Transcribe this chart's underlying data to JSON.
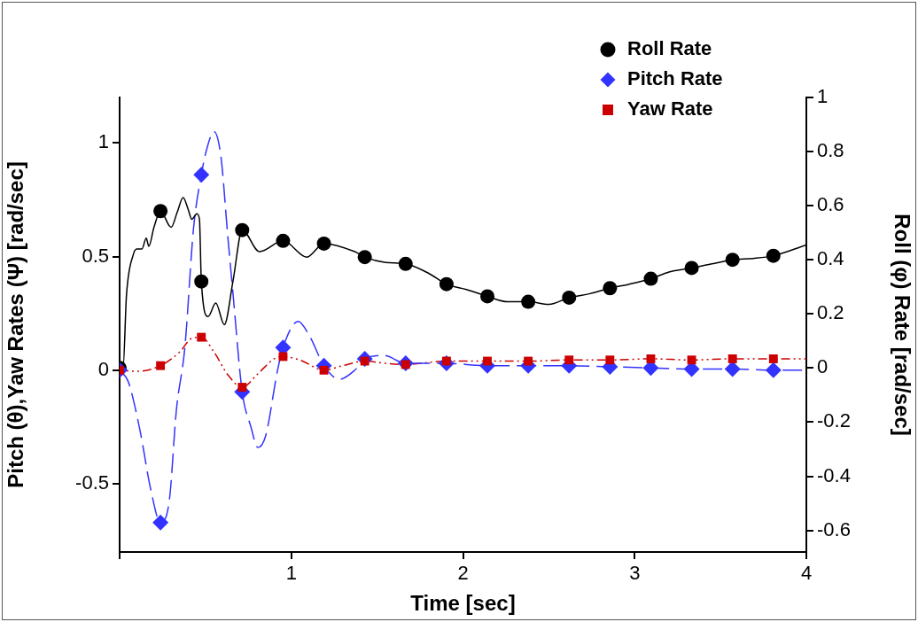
{
  "chart_data": {
    "type": "line",
    "xlabel": "Time [sec]",
    "ylabel": "Pitch (θ),Yaw Rates (Ψ) [rad/sec]",
    "y2label": "Roll (φ) Rate [rad/sec]",
    "xlim": [
      0,
      4
    ],
    "xticks": [
      {
        "value": 0,
        "label": null
      },
      1,
      2,
      3,
      4
    ],
    "ylim": [
      -0.8,
      1.2
    ],
    "yticks": [
      -0.5,
      0,
      0.5,
      1
    ],
    "y2lim": [
      -0.68,
      1
    ],
    "y2ticks": [
      -0.6,
      -0.4,
      -0.2,
      0,
      0.2,
      0.4,
      0.6,
      0.8,
      1
    ],
    "legend": "top right",
    "grid": false,
    "series": [
      {
        "name": "Roll Rate",
        "type": "scatter",
        "axis": "y2",
        "color": "#000000",
        "marker": "circle",
        "x": [
          0,
          0.238,
          0.476,
          0.714,
          0.952,
          1.19,
          1.428,
          1.666,
          1.904,
          2.142,
          2.38,
          2.618,
          2.856,
          3.094,
          3.332,
          3.57,
          3.808
        ],
        "values": [
          0,
          0.58,
          0.32,
          0.51,
          0.47,
          0.46,
          0.41,
          0.385,
          0.31,
          0.265,
          0.245,
          0.26,
          0.295,
          0.33,
          0.37,
          0.4,
          0.415
        ]
      },
      {
        "name": "Pitch Rate",
        "type": "scatter",
        "axis": "y",
        "color": "#3333ff",
        "marker": "diamond",
        "x": [
          0,
          0.238,
          0.476,
          0.714,
          0.952,
          1.19,
          1.428,
          1.666,
          1.904,
          2.142,
          2.38,
          2.618,
          2.856,
          3.094,
          3.332,
          3.57,
          3.808
        ],
        "values": [
          0,
          -0.67,
          0.86,
          -0.095,
          0.1,
          0.02,
          0.05,
          0.03,
          0.03,
          0.02,
          0.02,
          0.02,
          0.015,
          0.01,
          0.005,
          0.005,
          0
        ]
      },
      {
        "name": "Yaw Rate",
        "type": "scatter",
        "axis": "y",
        "color": "#cc0000",
        "marker": "square",
        "x": [
          0,
          0.238,
          0.476,
          0.714,
          0.952,
          1.19,
          1.428,
          1.666,
          1.904,
          2.142,
          2.38,
          2.618,
          2.856,
          3.094,
          3.332,
          3.57,
          3.808
        ],
        "values": [
          0,
          0.02,
          0.145,
          -0.075,
          0.06,
          0,
          0.04,
          0.025,
          0.04,
          0.04,
          0.04,
          0.045,
          0.045,
          0.05,
          0.045,
          0.05,
          0.05
        ]
      },
      {
        "type": "line",
        "axis": "y2",
        "color": "#000000",
        "marker": "none",
        "line_style": "solid",
        "x": [
          0,
          0.02,
          0.04,
          0.08,
          0.1,
          0.13,
          0.155,
          0.17,
          0.2,
          0.238,
          0.3,
          0.335,
          0.37,
          0.4,
          0.42,
          0.45,
          0.465,
          0.476,
          0.515,
          0.56,
          0.61,
          0.66,
          0.714,
          0.815,
          0.952,
          1.09,
          1.19,
          1.37,
          1.428,
          1.55,
          1.666,
          1.8,
          1.904,
          2.02,
          2.142,
          2.26,
          2.38,
          2.5,
          2.618,
          2.74,
          2.856,
          2.97,
          3.094,
          3.2,
          3.332,
          3.45,
          3.57,
          3.69,
          3.808,
          4
        ],
        "values": [
          0,
          0,
          0.27,
          0.42,
          0.44,
          0.44,
          0.48,
          0.45,
          0.52,
          0.58,
          0.52,
          0.575,
          0.63,
          0.585,
          0.55,
          0.57,
          0.55,
          0.32,
          0.19,
          0.24,
          0.16,
          0.32,
          0.51,
          0.43,
          0.47,
          0.41,
          0.46,
          0.43,
          0.41,
          0.39,
          0.385,
          0.35,
          0.31,
          0.29,
          0.265,
          0.245,
          0.245,
          0.235,
          0.26,
          0.275,
          0.295,
          0.31,
          0.33,
          0.355,
          0.37,
          0.385,
          0.4,
          0.405,
          0.415,
          0.455
        ]
      },
      {
        "type": "line",
        "axis": "y",
        "color": "#3333ff",
        "marker": "none",
        "line_style": "dashed",
        "x": [
          0,
          0.05,
          0.12,
          0.18,
          0.238,
          0.29,
          0.33,
          0.38,
          0.43,
          0.476,
          0.51,
          0.55,
          0.59,
          0.63,
          0.66,
          0.714,
          0.765,
          0.805,
          0.85,
          0.92,
          0.952,
          1.04,
          1.11,
          1.19,
          1.28,
          1.37,
          1.428,
          1.54,
          1.666,
          1.904,
          2.142,
          2.38,
          2.618,
          2.856,
          3.094,
          3.332,
          3.57,
          3.808,
          4
        ],
        "values": [
          0,
          -0.05,
          -0.27,
          -0.52,
          -0.67,
          -0.57,
          -0.18,
          0.1,
          0.62,
          0.86,
          0.98,
          1.05,
          0.94,
          0.59,
          0.34,
          -0.095,
          -0.25,
          -0.34,
          -0.29,
          0,
          0.1,
          0.215,
          0.145,
          0.02,
          -0.04,
          0,
          0.05,
          0.065,
          0.03,
          0.03,
          0.02,
          0.02,
          0.02,
          0.015,
          0.01,
          0.005,
          0.005,
          0,
          0
        ]
      },
      {
        "type": "line",
        "axis": "y",
        "color": "#cc0000",
        "marker": "none",
        "line_style": "dotted",
        "x": [
          0,
          0.1,
          0.238,
          0.35,
          0.42,
          0.476,
          0.55,
          0.63,
          0.714,
          0.8,
          0.9,
          0.952,
          1.05,
          1.19,
          1.3,
          1.428,
          1.55,
          1.666,
          1.904,
          2.142,
          2.38,
          2.618,
          2.856,
          3.094,
          3.332,
          3.57,
          3.808,
          4
        ],
        "values": [
          0,
          -0.005,
          0.02,
          0.08,
          0.14,
          0.145,
          0.08,
          -0.02,
          -0.075,
          -0.02,
          0.05,
          0.06,
          0.045,
          0,
          0.02,
          0.04,
          0.03,
          0.025,
          0.04,
          0.04,
          0.04,
          0.045,
          0.045,
          0.05,
          0.045,
          0.05,
          0.05,
          0.05
        ]
      }
    ]
  }
}
